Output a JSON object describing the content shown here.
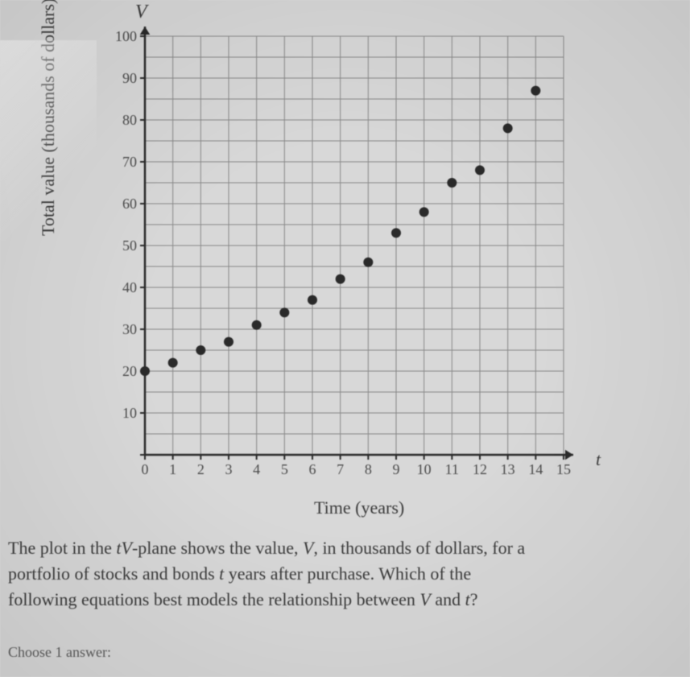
{
  "chart": {
    "type": "scatter",
    "y_axis_var": "V",
    "x_axis_var": "t",
    "y_label": "Total value (thousands of dollars)",
    "x_label": "Time (years)",
    "xlim": [
      0,
      15
    ],
    "ylim": [
      0,
      100
    ],
    "x_ticks": [
      0,
      1,
      2,
      3,
      4,
      5,
      6,
      7,
      8,
      9,
      10,
      11,
      12,
      13,
      14,
      15
    ],
    "y_ticks": [
      0,
      10,
      20,
      30,
      40,
      50,
      60,
      70,
      80,
      90,
      100
    ],
    "x_grid_step": 1,
    "y_grid_step": 5,
    "points": [
      {
        "x": 0,
        "y": 20
      },
      {
        "x": 1,
        "y": 22
      },
      {
        "x": 2,
        "y": 25
      },
      {
        "x": 3,
        "y": 27
      },
      {
        "x": 4,
        "y": 31
      },
      {
        "x": 5,
        "y": 34
      },
      {
        "x": 6,
        "y": 37
      },
      {
        "x": 7,
        "y": 42
      },
      {
        "x": 8,
        "y": 46
      },
      {
        "x": 9,
        "y": 53
      },
      {
        "x": 10,
        "y": 58
      },
      {
        "x": 11,
        "y": 65
      },
      {
        "x": 12,
        "y": 68
      },
      {
        "x": 13,
        "y": 78
      },
      {
        "x": 14,
        "y": 87
      }
    ],
    "marker_color": "#2a2a2a",
    "marker_radius": 6,
    "axis_color": "#2a2a2a",
    "axis_width": 2.5,
    "grid_color": "#888888",
    "grid_width": 1,
    "background_color": "#d8d8d8",
    "tick_fontsize": 18,
    "label_fontsize": 22,
    "arrow_size": 10
  },
  "question": {
    "line1_pre": "The plot in the ",
    "line1_var": "tV",
    "line1_post": "-plane shows the value, ",
    "line1_var2": "V",
    "line1_end": ", in thousands of dollars, for a",
    "line2_pre": "portfolio of stocks and bonds ",
    "line2_var": "t",
    "line2_post": " years after purchase. Which of the",
    "line3_pre": "following equations best models the relationship between ",
    "line3_var1": "V",
    "line3_mid": " and ",
    "line3_var2": "t",
    "line3_end": "?"
  },
  "choose_label": "Choose 1 answer:"
}
